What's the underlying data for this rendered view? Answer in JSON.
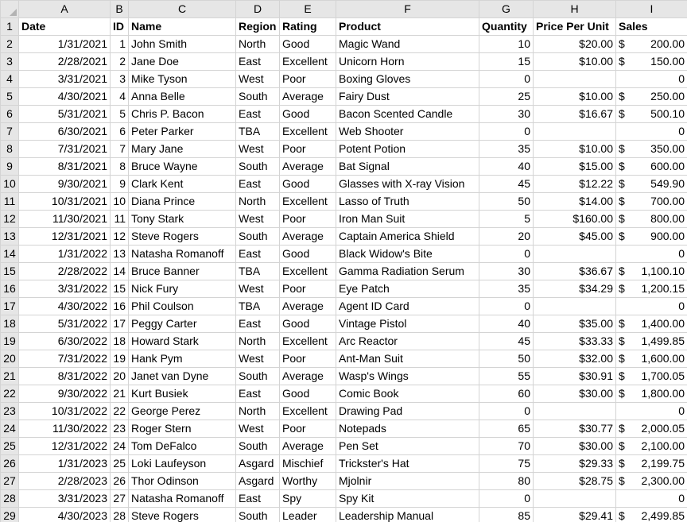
{
  "column_letters": [
    "A",
    "B",
    "C",
    "D",
    "E",
    "F",
    "G",
    "H",
    "I"
  ],
  "headers": [
    "Date",
    "ID",
    "Name",
    "Region",
    "Rating",
    "Product",
    "Quantity",
    "Price Per Unit",
    "Sales"
  ],
  "rows": [
    {
      "date": "1/31/2021",
      "id": "1",
      "name": "John Smith",
      "region": "North",
      "rating": "Good",
      "product": "Magic Wand",
      "qty": "10",
      "price": "$20.00",
      "sales_sym": "$",
      "sales_amt": "200.00"
    },
    {
      "date": "2/28/2021",
      "id": "2",
      "name": "Jane Doe",
      "region": "East",
      "rating": "Excellent",
      "product": "Unicorn Horn",
      "qty": "15",
      "price": "$10.00",
      "sales_sym": "$",
      "sales_amt": "150.00"
    },
    {
      "date": "3/31/2021",
      "id": "3",
      "name": "Mike Tyson",
      "region": "West",
      "rating": "Poor",
      "product": "Boxing Gloves",
      "qty": "0",
      "price": "",
      "sales_sym": "",
      "sales_amt": "0"
    },
    {
      "date": "4/30/2021",
      "id": "4",
      "name": "Anna Belle",
      "region": "South",
      "rating": "Average",
      "product": "Fairy Dust",
      "qty": "25",
      "price": "$10.00",
      "sales_sym": "$",
      "sales_amt": "250.00"
    },
    {
      "date": "5/31/2021",
      "id": "5",
      "name": "Chris P. Bacon",
      "region": "East",
      "rating": "Good",
      "product": "Bacon Scented Candle",
      "qty": "30",
      "price": "$16.67",
      "sales_sym": "$",
      "sales_amt": "500.10"
    },
    {
      "date": "6/30/2021",
      "id": "6",
      "name": "Peter Parker",
      "region": "TBA",
      "rating": "Excellent",
      "product": "Web Shooter",
      "qty": "0",
      "price": "",
      "sales_sym": "",
      "sales_amt": "0"
    },
    {
      "date": "7/31/2021",
      "id": "7",
      "name": "Mary Jane",
      "region": "West",
      "rating": "Poor",
      "product": "Potent Potion",
      "qty": "35",
      "price": "$10.00",
      "sales_sym": "$",
      "sales_amt": "350.00"
    },
    {
      "date": "8/31/2021",
      "id": "8",
      "name": "Bruce Wayne",
      "region": "South",
      "rating": "Average",
      "product": "Bat Signal",
      "qty": "40",
      "price": "$15.00",
      "sales_sym": "$",
      "sales_amt": "600.00"
    },
    {
      "date": "9/30/2021",
      "id": "9",
      "name": "Clark Kent",
      "region": "East",
      "rating": "Good",
      "product": "Glasses with X-ray Vision",
      "qty": "45",
      "price": "$12.22",
      "sales_sym": "$",
      "sales_amt": "549.90"
    },
    {
      "date": "10/31/2021",
      "id": "10",
      "name": "Diana Prince",
      "region": "North",
      "rating": "Excellent",
      "product": "Lasso of Truth",
      "qty": "50",
      "price": "$14.00",
      "sales_sym": "$",
      "sales_amt": "700.00"
    },
    {
      "date": "11/30/2021",
      "id": "11",
      "name": "Tony Stark",
      "region": "West",
      "rating": "Poor",
      "product": "Iron Man Suit",
      "qty": "5",
      "price": "$160.00",
      "sales_sym": "$",
      "sales_amt": "800.00"
    },
    {
      "date": "12/31/2021",
      "id": "12",
      "name": "Steve Rogers",
      "region": "South",
      "rating": "Average",
      "product": "Captain America Shield",
      "qty": "20",
      "price": "$45.00",
      "sales_sym": "$",
      "sales_amt": "900.00"
    },
    {
      "date": "1/31/2022",
      "id": "13",
      "name": "Natasha Romanoff",
      "region": "East",
      "rating": "Good",
      "product": "Black Widow's Bite",
      "qty": "0",
      "price": "",
      "sales_sym": "",
      "sales_amt": "0"
    },
    {
      "date": "2/28/2022",
      "id": "14",
      "name": "Bruce Banner",
      "region": "TBA",
      "rating": "Excellent",
      "product": "Gamma Radiation Serum",
      "qty": "30",
      "price": "$36.67",
      "sales_sym": "$",
      "sales_amt": "1,100.10"
    },
    {
      "date": "3/31/2022",
      "id": "15",
      "name": "Nick Fury",
      "region": "West",
      "rating": "Poor",
      "product": "Eye Patch",
      "qty": "35",
      "price": "$34.29",
      "sales_sym": "$",
      "sales_amt": "1,200.15"
    },
    {
      "date": "4/30/2022",
      "id": "16",
      "name": "Phil Coulson",
      "region": "TBA",
      "rating": "Average",
      "product": "Agent ID Card",
      "qty": "0",
      "price": "",
      "sales_sym": "",
      "sales_amt": "0"
    },
    {
      "date": "5/31/2022",
      "id": "17",
      "name": "Peggy Carter",
      "region": "East",
      "rating": "Good",
      "product": "Vintage Pistol",
      "qty": "40",
      "price": "$35.00",
      "sales_sym": "$",
      "sales_amt": "1,400.00"
    },
    {
      "date": "6/30/2022",
      "id": "18",
      "name": "Howard Stark",
      "region": "North",
      "rating": "Excellent",
      "product": "Arc Reactor",
      "qty": "45",
      "price": "$33.33",
      "sales_sym": "$",
      "sales_amt": "1,499.85"
    },
    {
      "date": "7/31/2022",
      "id": "19",
      "name": "Hank Pym",
      "region": "West",
      "rating": "Poor",
      "product": "Ant-Man Suit",
      "qty": "50",
      "price": "$32.00",
      "sales_sym": "$",
      "sales_amt": "1,600.00"
    },
    {
      "date": "8/31/2022",
      "id": "20",
      "name": "Janet van Dyne",
      "region": "South",
      "rating": "Average",
      "product": "Wasp's Wings",
      "qty": "55",
      "price": "$30.91",
      "sales_sym": "$",
      "sales_amt": "1,700.05"
    },
    {
      "date": "9/30/2022",
      "id": "21",
      "name": "Kurt Busiek",
      "region": "East",
      "rating": "Good",
      "product": "Comic Book",
      "qty": "60",
      "price": "$30.00",
      "sales_sym": "$",
      "sales_amt": "1,800.00"
    },
    {
      "date": "10/31/2022",
      "id": "22",
      "name": "George Perez",
      "region": "North",
      "rating": "Excellent",
      "product": "Drawing Pad",
      "qty": "0",
      "price": "",
      "sales_sym": "",
      "sales_amt": "0"
    },
    {
      "date": "11/30/2022",
      "id": "23",
      "name": "Roger Stern",
      "region": "West",
      "rating": "Poor",
      "product": "Notepads",
      "qty": "65",
      "price": "$30.77",
      "sales_sym": "$",
      "sales_amt": "2,000.05"
    },
    {
      "date": "12/31/2022",
      "id": "24",
      "name": "Tom DeFalco",
      "region": "South",
      "rating": "Average",
      "product": "Pen Set",
      "qty": "70",
      "price": "$30.00",
      "sales_sym": "$",
      "sales_amt": "2,100.00"
    },
    {
      "date": "1/31/2023",
      "id": "25",
      "name": "Loki Laufeyson",
      "region": "Asgard",
      "rating": "Mischief",
      "product": "Trickster's Hat",
      "qty": "75",
      "price": "$29.33",
      "sales_sym": "$",
      "sales_amt": "2,199.75"
    },
    {
      "date": "2/28/2023",
      "id": "26",
      "name": "Thor Odinson",
      "region": "Asgard",
      "rating": "Worthy",
      "product": "Mjolnir",
      "qty": "80",
      "price": "$28.75",
      "sales_sym": "$",
      "sales_amt": "2,300.00"
    },
    {
      "date": "3/31/2023",
      "id": "27",
      "name": "Natasha Romanoff",
      "region": "East",
      "rating": "Spy",
      "product": "Spy Kit",
      "qty": "0",
      "price": "",
      "sales_sym": "",
      "sales_amt": "0"
    },
    {
      "date": "4/30/2023",
      "id": "28",
      "name": "Steve Rogers",
      "region": "South",
      "rating": "Leader",
      "product": "Leadership Manual",
      "qty": "85",
      "price": "$29.41",
      "sales_sym": "$",
      "sales_amt": "2,499.85"
    }
  ]
}
